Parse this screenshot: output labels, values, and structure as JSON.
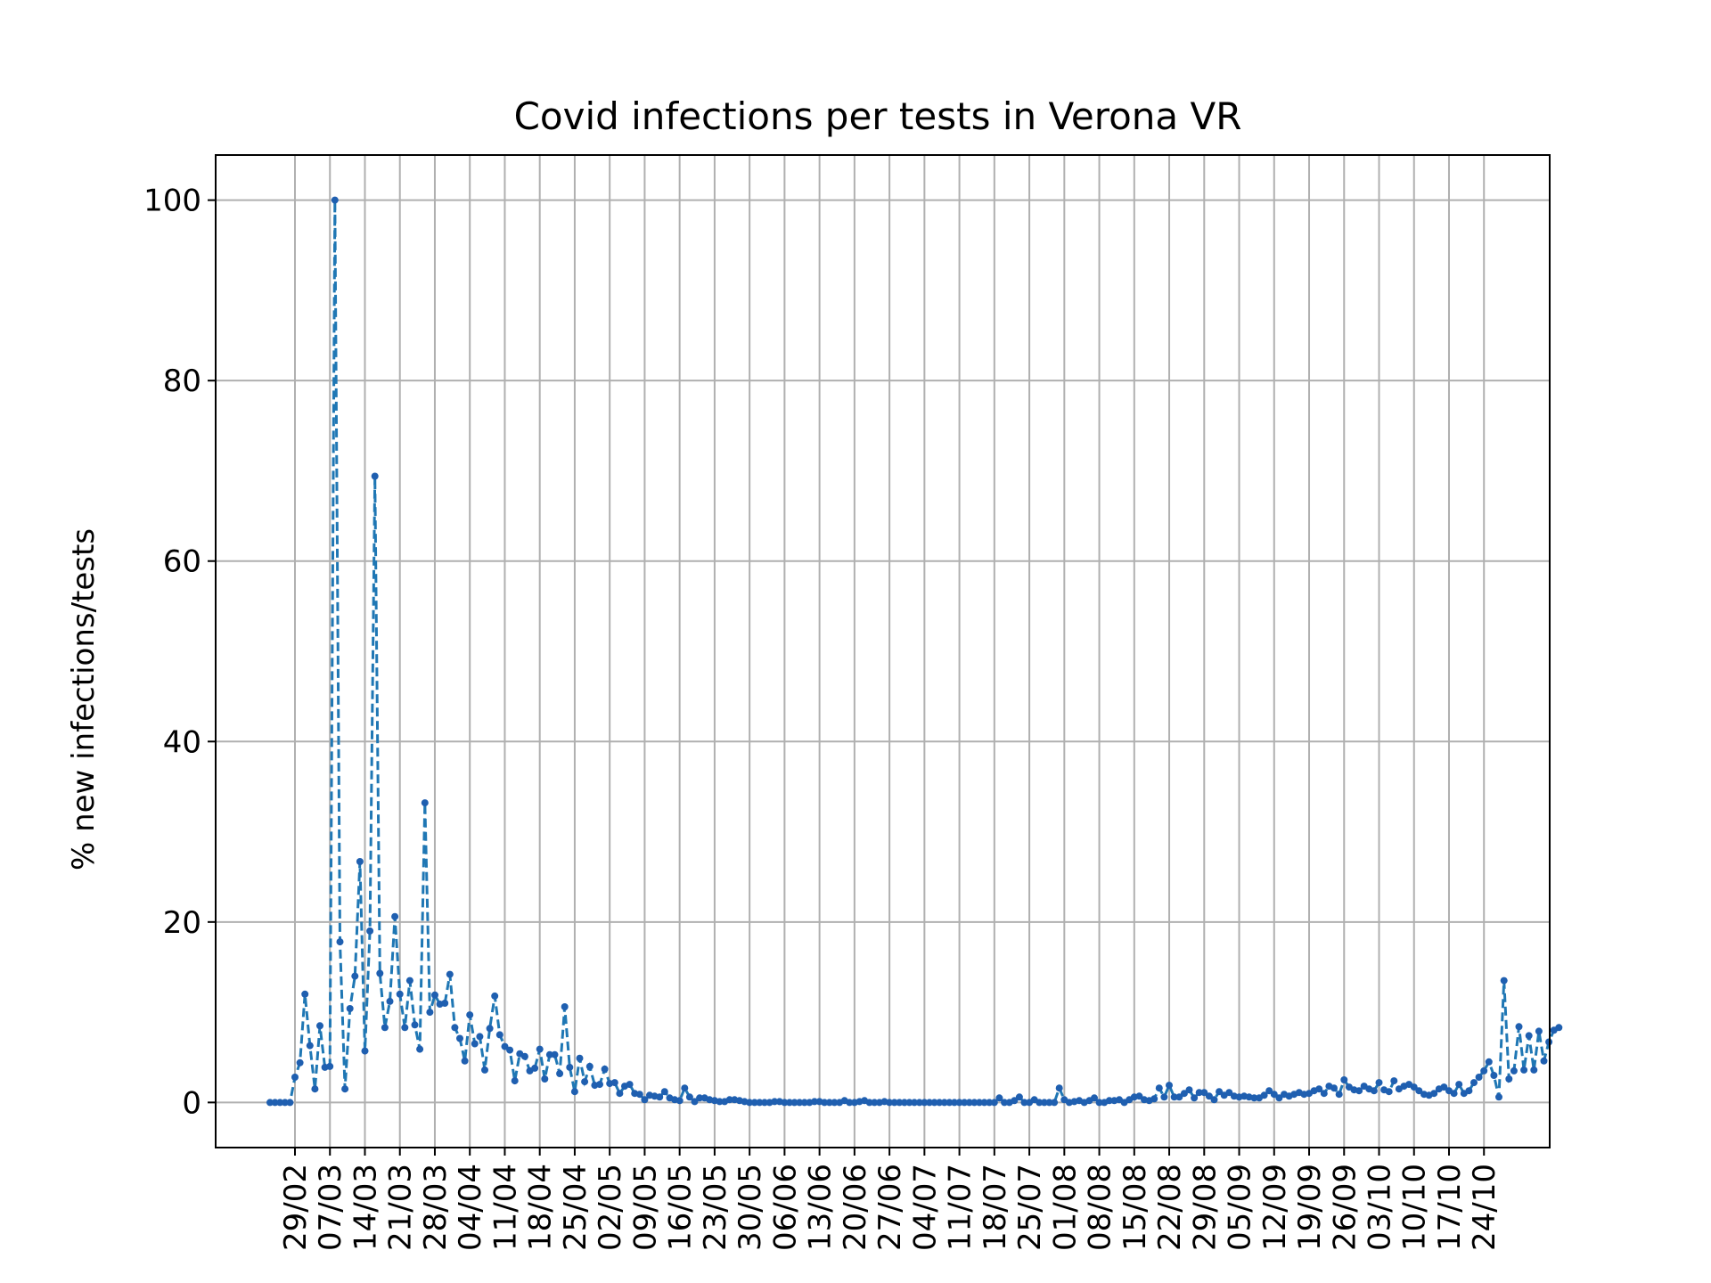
{
  "chart_data": {
    "type": "line",
    "title": "Covid infections per tests in Verona VR",
    "xlabel": "",
    "ylabel": "% new infections/tests",
    "ylim": [
      -5,
      105
    ],
    "grid": true,
    "line_style": "dashed",
    "marker": "dot",
    "colors": {
      "line": "#1f77b4",
      "marker": "#1f5fb0"
    },
    "x_ticks": [
      "29/02",
      "07/03",
      "14/03",
      "21/03",
      "28/03",
      "04/04",
      "11/04",
      "18/04",
      "25/04",
      "02/05",
      "09/05",
      "16/05",
      "23/05",
      "30/05",
      "06/06",
      "13/06",
      "20/06",
      "27/06",
      "04/07",
      "11/07",
      "18/07",
      "25/07",
      "01/08",
      "08/08",
      "15/08",
      "22/08",
      "29/08",
      "05/09",
      "12/09",
      "19/09",
      "26/09",
      "03/10",
      "10/10",
      "17/10",
      "24/10"
    ],
    "y_ticks": [
      0,
      20,
      40,
      60,
      80,
      100
    ],
    "start_date": "2020-02-25",
    "series": [
      {
        "values": [
          0,
          0,
          0,
          0,
          0,
          2.8,
          4.4,
          12,
          6.3,
          1.5,
          8.5,
          3.9,
          4,
          100,
          17.8,
          1.5,
          10.4,
          14,
          26.7,
          5.7,
          19,
          69.4,
          14.3,
          8.3,
          11.2,
          20.6,
          12,
          8.3,
          13.5,
          8.6,
          5.9,
          33.2,
          10,
          11.9,
          10.9,
          11,
          14.2,
          8.3,
          7.1,
          4.6,
          9.7,
          6.5,
          7.3,
          3.6,
          8.2,
          11.8,
          7.5,
          6.2,
          5.8,
          2.4,
          5.4,
          5.1,
          3.5,
          3.8,
          5.9,
          2.6,
          5.3,
          5.3,
          3.2,
          10.6,
          3.9,
          1.2,
          4.9,
          2.3,
          4,
          1.9,
          2,
          3.7,
          2.1,
          2.2,
          1,
          1.8,
          2,
          1,
          0.9,
          0.3,
          0.8,
          0.7,
          0.6,
          1.2,
          0.5,
          0.3,
          0.2,
          1.6,
          0.6,
          0.1,
          0.5,
          0.5,
          0.3,
          0.2,
          0.1,
          0.1,
          0.3,
          0.3,
          0.2,
          0.1,
          0,
          0,
          0,
          0,
          0,
          0.1,
          0.1,
          0,
          0,
          0,
          0,
          0,
          0,
          0.1,
          0.1,
          0,
          0,
          0,
          0,
          0.2,
          0,
          0,
          0.1,
          0.2,
          0,
          0,
          0,
          0.1,
          0,
          0,
          0,
          0,
          0,
          0,
          0,
          0,
          0,
          0,
          0,
          0,
          0,
          0,
          0,
          0,
          0,
          0,
          0,
          0,
          0,
          0,
          0.5,
          0,
          0,
          0.2,
          0.6,
          0,
          0,
          0.3,
          0,
          0,
          0,
          0,
          1.6,
          0.3,
          0,
          0.1,
          0.2,
          0,
          0.2,
          0.5,
          0,
          0,
          0.2,
          0.2,
          0.3,
          0,
          0.3,
          0.6,
          0.7,
          0.3,
          0.2,
          0.4,
          1.6,
          0.6,
          1.9,
          0.6,
          0.6,
          1,
          1.4,
          0.5,
          1.1,
          1.1,
          0.7,
          0.3,
          1.2,
          0.8,
          1.1,
          0.7,
          0.6,
          0.7,
          0.6,
          0.5,
          0.5,
          0.8,
          1.3,
          0.9,
          0.5,
          0.9,
          0.7,
          0.9,
          1.1,
          0.9,
          1,
          1.3,
          1.5,
          1,
          1.8,
          1.6,
          0.9,
          2.5,
          1.7,
          1.4,
          1.3,
          1.8,
          1.5,
          1.3,
          2.2,
          1.4,
          1.2,
          2.4,
          1.5,
          1.8,
          2,
          1.7,
          1.3,
          0.9,
          0.8,
          1,
          1.5,
          1.7,
          1.3,
          1,
          2,
          1,
          1.3,
          2.2,
          2.8,
          3.5,
          4.5,
          3,
          0.6,
          13.5,
          2.6,
          3.5,
          8.4,
          3.6,
          7.4,
          3.6,
          7.9,
          4.6,
          6.7,
          8,
          8.3
        ]
      }
    ]
  }
}
